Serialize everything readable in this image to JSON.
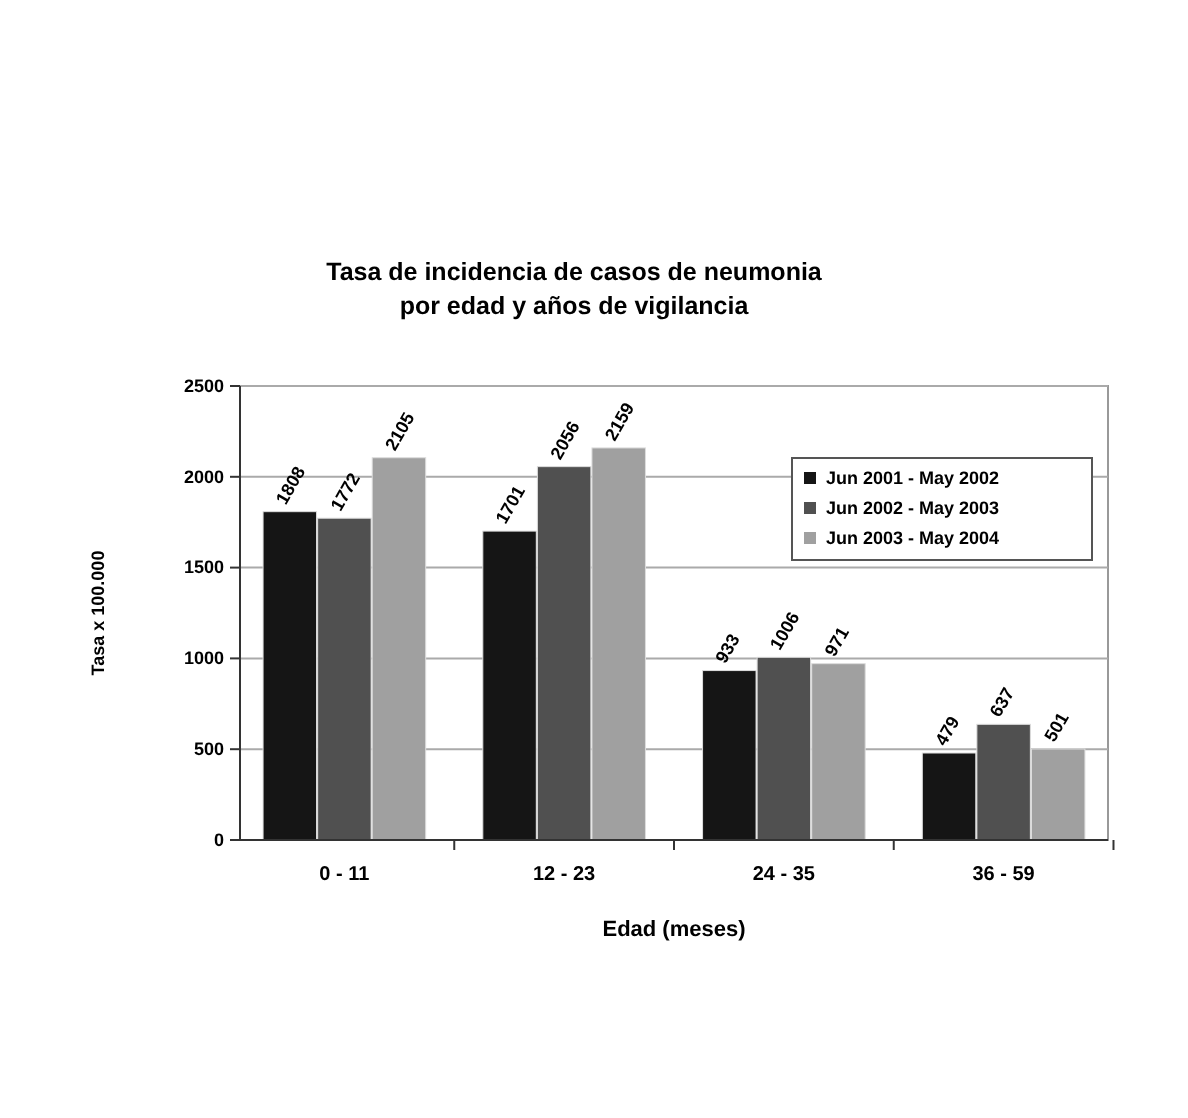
{
  "chart_data": {
    "type": "bar",
    "title": "Tasa de incidencia de casos de neumonia\npor edad y años de vigilancia",
    "xlabel": "Edad (meses)",
    "ylabel": "Tasa x 100.000",
    "categories": [
      "0 - 11",
      "12 - 23",
      "24 - 35",
      "36 - 59"
    ],
    "series": [
      {
        "name": "Jun 2001 - May 2002",
        "color": "#151515",
        "values": [
          1808,
          1701,
          933,
          479
        ]
      },
      {
        "name": "Jun 2002 - May 2003",
        "color": "#505050",
        "values": [
          1772,
          2056,
          1006,
          637
        ]
      },
      {
        "name": "Jun 2003 - May 2004",
        "color": "#a0a0a0",
        "values": [
          2105,
          2159,
          971,
          501
        ]
      }
    ],
    "ylim": [
      0,
      2500
    ],
    "yticks": [
      0,
      500,
      1000,
      1500,
      2000,
      2500
    ],
    "grid": "y",
    "legend": "top right",
    "data_labels": true
  }
}
